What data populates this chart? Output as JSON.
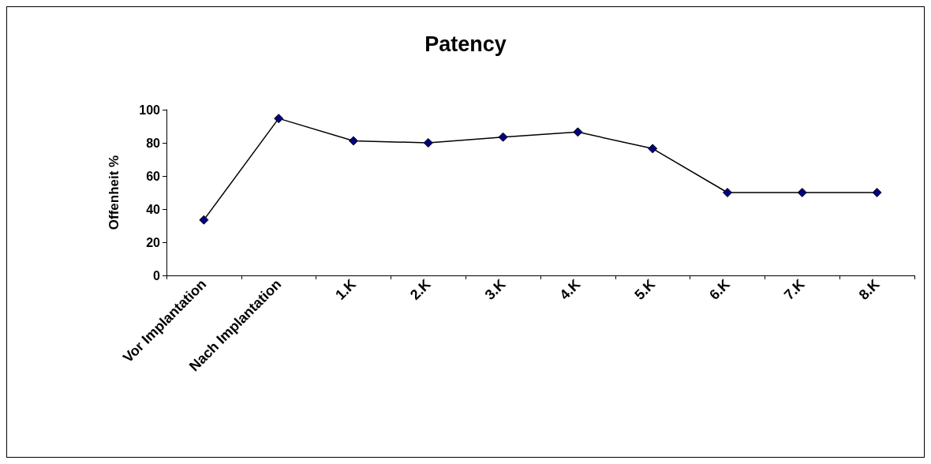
{
  "chart_data": {
    "type": "line",
    "title": "Patency",
    "ylabel": "Offenheit %",
    "categories": [
      "Vor Implantation",
      "Nach Implantation",
      "1.K",
      "2.K",
      "3.K",
      "4.K",
      "5.K",
      "6.K",
      "7.K",
      "8.K"
    ],
    "series": [
      {
        "color": "#000080",
        "values": [
          33.5,
          94.7,
          81.2,
          80,
          83.5,
          86.5,
          76.5,
          50,
          50,
          50
        ]
      }
    ],
    "ylim": [
      0,
      100
    ],
    "yticks": [
      0,
      20,
      40,
      60,
      80,
      100
    ],
    "grid": false,
    "marker": "diamond",
    "line_style": "solid"
  }
}
